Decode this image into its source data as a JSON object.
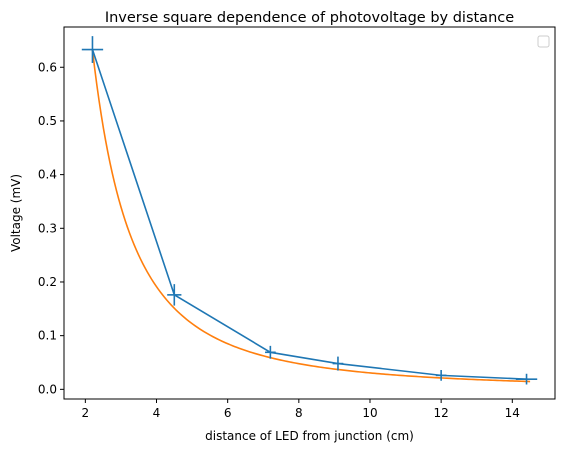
{
  "chart_data": {
    "type": "line",
    "title": "Inverse square dependence of photovoltage by distance",
    "xlabel": "distance of LED from junction (cm)",
    "ylabel": "Voltage (mV)",
    "xlim": [
      1.4,
      15.2
    ],
    "ylim": [
      -0.018,
      0.675
    ],
    "xticks": [
      2,
      4,
      6,
      8,
      10,
      12,
      14
    ],
    "yticks": [
      0.0,
      0.1,
      0.2,
      0.3,
      0.4,
      0.5,
      0.6
    ],
    "ytick_labels": [
      "0.0",
      "0.1",
      "0.2",
      "0.3",
      "0.4",
      "0.5",
      "0.6"
    ],
    "grid": false,
    "legend": {
      "placement": "top-right",
      "entries": []
    },
    "series": [
      {
        "kind": "measured-with-errorbars",
        "color": "#1f77b4",
        "x": [
          2.2,
          4.5,
          7.2,
          9.1,
          12.0,
          14.4
        ],
        "y": [
          0.633,
          0.176,
          0.069,
          0.048,
          0.026,
          0.019
        ],
        "xerr": [
          0.3,
          0.2,
          0.15,
          0.15,
          0.15,
          0.3
        ],
        "yerr": [
          0.025,
          0.02,
          0.012,
          0.013,
          0.01,
          0.01
        ]
      },
      {
        "kind": "fit-curve",
        "color": "#ff7f0e",
        "function": "a / x^2",
        "a": 3.06,
        "x_range": [
          2.2,
          14.5
        ]
      }
    ]
  }
}
